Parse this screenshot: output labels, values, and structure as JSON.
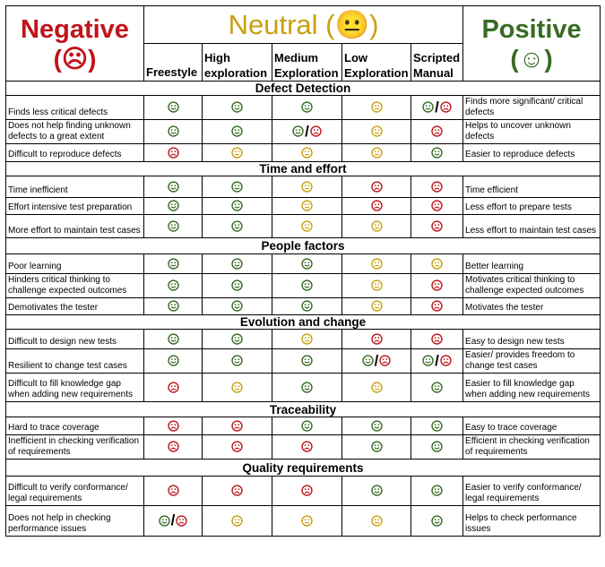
{
  "header": {
    "negative_label": "Negative",
    "negative_symbol": "(☹)",
    "neutral_label": "Neutral (😐)",
    "positive_label": "Positive",
    "positive_symbol": "(☺)",
    "columns": [
      "Freestyle",
      "High exploration",
      "Medium Exploration",
      "Low Exploration",
      "Scripted Manual"
    ]
  },
  "colors": {
    "positive": "#386b23",
    "neutral": "#c8a010",
    "negative": "#c0141b"
  },
  "sections": [
    {
      "title": "Defect Detection",
      "rows": [
        {
          "negative": "Finds less critical defects",
          "positive": "Finds more significant/ critical defects",
          "ratings": [
            "positive",
            "positive",
            "positive",
            "neutral",
            "positive/negative"
          ]
        },
        {
          "negative": "Does not help finding unknown defects to a great extent",
          "positive": "Helps to uncover unknown defects",
          "ratings": [
            "positive",
            "positive",
            "positive/negative",
            "neutral",
            "negative"
          ]
        },
        {
          "negative": "Difficult to reproduce defects",
          "positive": "Easier to reproduce defects",
          "ratings": [
            "negative",
            "neutral",
            "neutral",
            "neutral",
            "positive"
          ]
        }
      ]
    },
    {
      "title": "Time and effort",
      "rows": [
        {
          "negative": "Time inefficient",
          "positive": "Time efficient",
          "ratings": [
            "positive",
            "positive",
            "neutral",
            "negative",
            "negative"
          ]
        },
        {
          "negative": "Effort intensive test preparation",
          "positive": "Less effort to prepare tests",
          "ratings": [
            "positive",
            "positive",
            "neutral",
            "negative",
            "negative"
          ]
        },
        {
          "negative": "More effort to maintain test cases",
          "positive": "Less effort to maintain test cases",
          "ratings": [
            "positive",
            "positive",
            "neutral",
            "neutral",
            "negative"
          ]
        }
      ]
    },
    {
      "title": "People factors",
      "rows": [
        {
          "negative": "Poor learning",
          "positive": "Better learning",
          "ratings": [
            "positive",
            "positive",
            "positive",
            "neutral",
            "neutral"
          ]
        },
        {
          "negative": "Hinders critical thinking to challenge expected outcomes",
          "positive": "Motivates critical thinking to challenge expected outcomes",
          "ratings": [
            "positive",
            "positive",
            "positive",
            "neutral",
            "negative"
          ]
        },
        {
          "negative": "Demotivates the tester",
          "positive": "Motivates the tester",
          "ratings": [
            "positive",
            "positive",
            "positive",
            "neutral",
            "negative"
          ]
        }
      ]
    },
    {
      "title": "Evolution and change",
      "rows": [
        {
          "negative": "Difficult to design new tests",
          "positive": "Easy to design new tests",
          "ratings": [
            "positive",
            "positive",
            "neutral",
            "negative",
            "negative"
          ]
        },
        {
          "negative": "Resilient to change test cases",
          "positive": "Easier/ provides freedom to change test cases",
          "ratings": [
            "positive",
            "positive",
            "positive",
            "positive/negative",
            "positive/negative"
          ]
        },
        {
          "negative": "Difficult to fill knowledge gap when adding new requirements",
          "positive": "Easier to fill knowledge gap when adding new requirements",
          "ratings": [
            "negative",
            "neutral",
            "positive",
            "neutral",
            "positive"
          ]
        }
      ]
    },
    {
      "title": "Traceability",
      "rows": [
        {
          "negative": "Hard to trace coverage",
          "positive": "Easy to trace coverage",
          "ratings": [
            "negative",
            "negative",
            "positive",
            "positive",
            "positive"
          ]
        },
        {
          "negative": "Inefficient in checking verification of requirements",
          "positive": "Efficient in checking verification of requirements",
          "ratings": [
            "negative",
            "negative",
            "negative",
            "positive",
            "positive"
          ]
        }
      ]
    },
    {
      "title": "Quality requirements",
      "rows": [
        {
          "negative": "Difficult to verify conformance/ legal requirements",
          "positive": "Easier to verify conformance/ legal requirements",
          "ratings": [
            "negative",
            "negative",
            "negative",
            "positive",
            "positive"
          ]
        },
        {
          "negative": "Does not help in checking performance issues",
          "positive": "Helps to check performance issues",
          "ratings": [
            "positive/negative",
            "neutral",
            "neutral",
            "neutral",
            "positive"
          ]
        }
      ]
    }
  ]
}
